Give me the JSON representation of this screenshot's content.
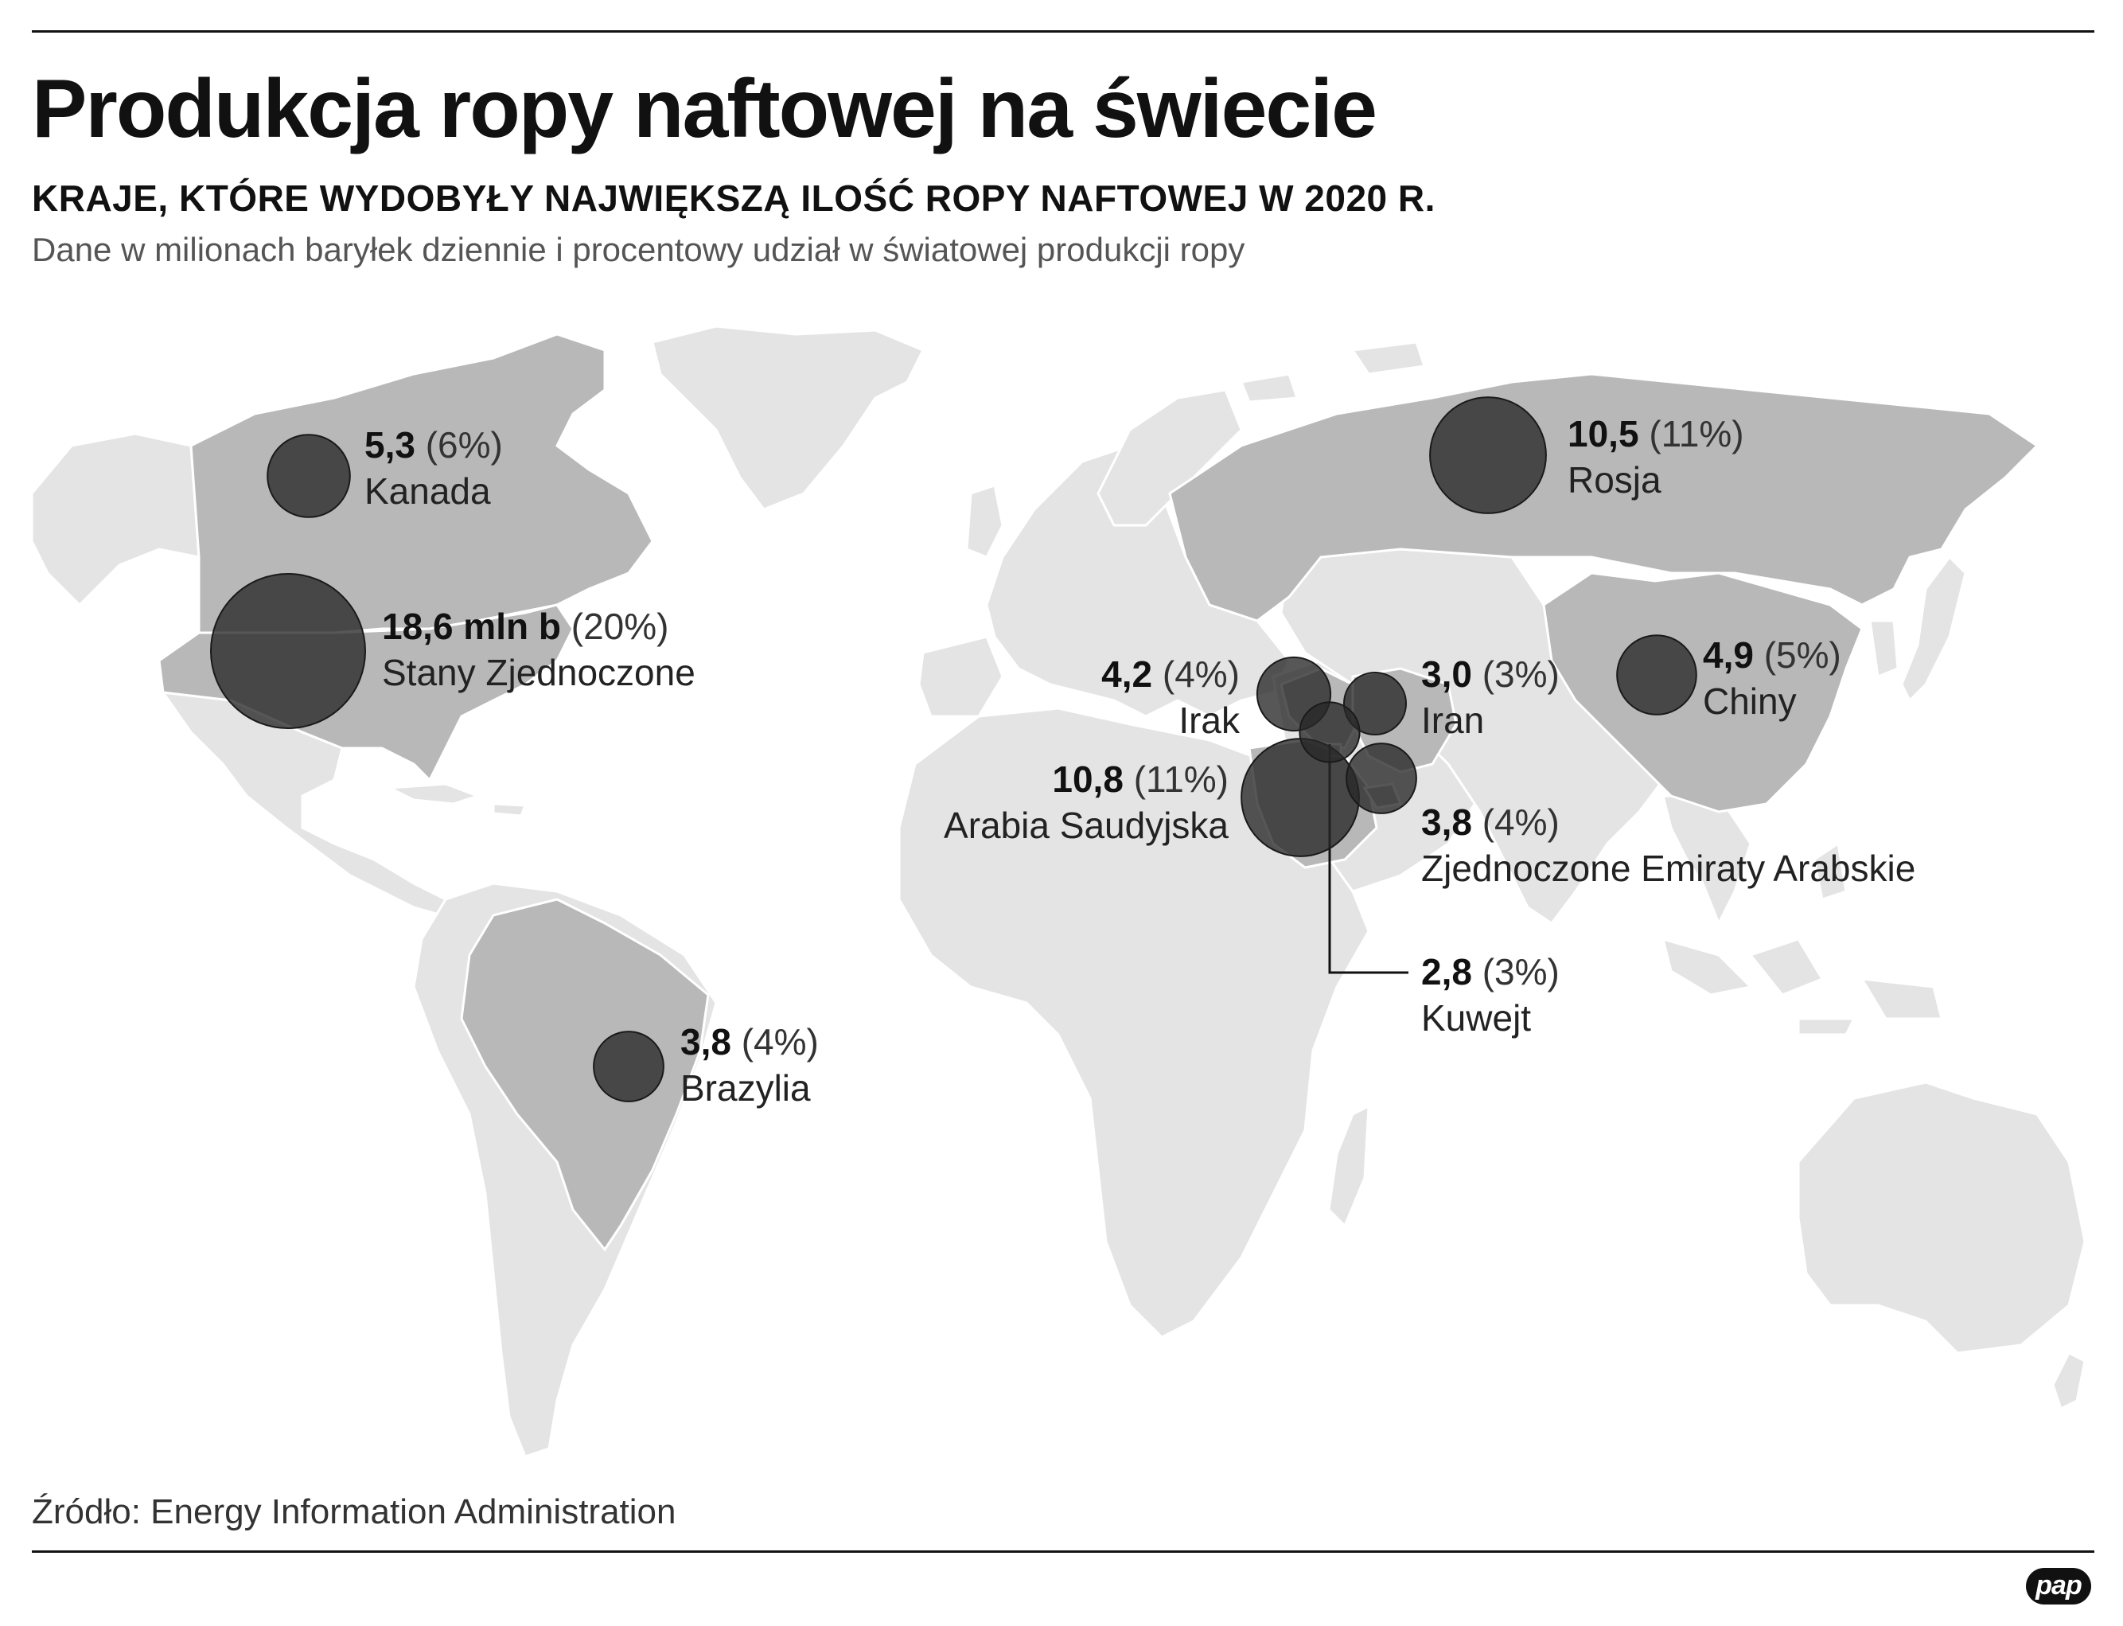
{
  "header": {
    "title": "Produkcja ropy naftowej na świecie",
    "subtitle": "KRAJE, KTÓRE WYDOBYŁY NAJWIĘKSZĄ ILOŚĆ ROPY NAFTOWEJ W 2020 R.",
    "note": "Dane w milionach baryłek dziennie i procentowy udział w światowej produkcji ropy"
  },
  "colors": {
    "land": "#e4e4e4",
    "highlighted_country": "#b8b8b8",
    "bubble": "#2b2b2b",
    "text": "#111111"
  },
  "countries": [
    {
      "id": "canada",
      "value": "5,3",
      "share": "(6%)",
      "name": "Kanada",
      "mbpd": 5.3,
      "percent": 6
    },
    {
      "id": "usa",
      "value": "18,6 mln b",
      "share": "(20%)",
      "name": "Stany Zjednoczone",
      "mbpd": 18.6,
      "percent": 20
    },
    {
      "id": "brazil",
      "value": "3,8",
      "share": "(4%)",
      "name": "Brazylia",
      "mbpd": 3.8,
      "percent": 4
    },
    {
      "id": "russia",
      "value": "10,5",
      "share": "(11%)",
      "name": "Rosja",
      "mbpd": 10.5,
      "percent": 11
    },
    {
      "id": "china",
      "value": "4,9",
      "share": "(5%)",
      "name": "Chiny",
      "mbpd": 4.9,
      "percent": 5
    },
    {
      "id": "iraq",
      "value": "4,2",
      "share": "(4%)",
      "name": "Irak",
      "mbpd": 4.2,
      "percent": 4
    },
    {
      "id": "iran",
      "value": "3,0",
      "share": "(3%)",
      "name": "Iran",
      "mbpd": 3.0,
      "percent": 3
    },
    {
      "id": "saudi",
      "value": "10,8",
      "share": "(11%)",
      "name": "Arabia Saudyjska",
      "mbpd": 10.8,
      "percent": 11
    },
    {
      "id": "uae",
      "value": "3,8",
      "share": "(4%)",
      "name": "Zjednoczone Emiraty Arabskie",
      "mbpd": 3.8,
      "percent": 4
    },
    {
      "id": "kuwait",
      "value": "2,8",
      "share": "(3%)",
      "name": "Kuwejt",
      "mbpd": 2.8,
      "percent": 3
    }
  ],
  "footer": {
    "source": "Źródło: Energy Information Administration",
    "logo_text": "pap"
  }
}
